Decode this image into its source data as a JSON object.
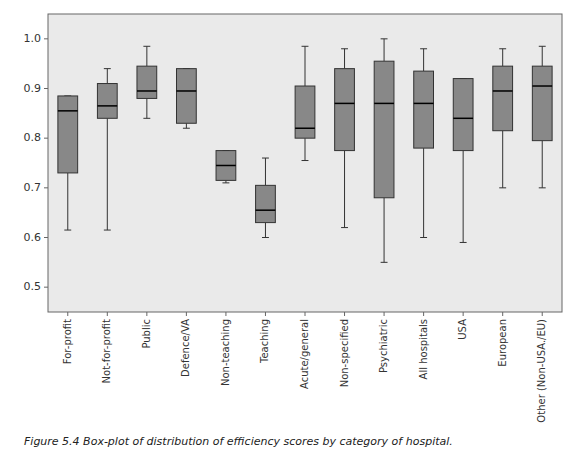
{
  "chart_data": {
    "type": "box",
    "categories": [
      "For-profit",
      "Not-for-profit",
      "Public",
      "Defence/VA",
      "Non-teaching",
      "Teaching",
      "Acute/general",
      "Non-specified",
      "Psychiatric",
      "All hospitals",
      "USA",
      "European",
      "Other (Non-USA./EU)"
    ],
    "values": [
      {
        "low": 0.615,
        "q1": 0.73,
        "median": 0.855,
        "q3": 0.885,
        "high": 0.885
      },
      {
        "low": 0.615,
        "q1": 0.84,
        "median": 0.865,
        "q3": 0.91,
        "high": 0.94
      },
      {
        "low": 0.84,
        "q1": 0.88,
        "median": 0.895,
        "q3": 0.945,
        "high": 0.985
      },
      {
        "low": 0.82,
        "q1": 0.83,
        "median": 0.895,
        "q3": 0.94,
        "high": 0.94
      },
      {
        "low": 0.71,
        "q1": 0.715,
        "median": 0.745,
        "q3": 0.775,
        "high": 0.775
      },
      {
        "low": 0.6,
        "q1": 0.63,
        "median": 0.655,
        "q3": 0.705,
        "high": 0.76
      },
      {
        "low": 0.755,
        "q1": 0.8,
        "median": 0.82,
        "q3": 0.905,
        "high": 0.985
      },
      {
        "low": 0.62,
        "q1": 0.775,
        "median": 0.87,
        "q3": 0.94,
        "high": 0.98
      },
      {
        "low": 0.55,
        "q1": 0.68,
        "median": 0.87,
        "q3": 0.955,
        "high": 1.0
      },
      {
        "low": 0.6,
        "q1": 0.78,
        "median": 0.87,
        "q3": 0.935,
        "high": 0.98
      },
      {
        "low": 0.59,
        "q1": 0.775,
        "median": 0.84,
        "q3": 0.92,
        "high": 0.92
      },
      {
        "low": 0.7,
        "q1": 0.815,
        "median": 0.895,
        "q3": 0.945,
        "high": 0.98
      },
      {
        "low": 0.7,
        "q1": 0.795,
        "median": 0.905,
        "q3": 0.945,
        "high": 0.985
      }
    ],
    "color": "#888888",
    "ylim": [
      0.45,
      1.05
    ],
    "yticks": [
      0.5,
      0.6,
      0.7,
      0.8,
      0.9,
      {
        "value": 1.0,
        "label": "1.0"
      }
    ],
    "grid": false,
    "caption": "Figure 5.4  Box-plot of distribution of efficiency scores by category of hospital."
  }
}
